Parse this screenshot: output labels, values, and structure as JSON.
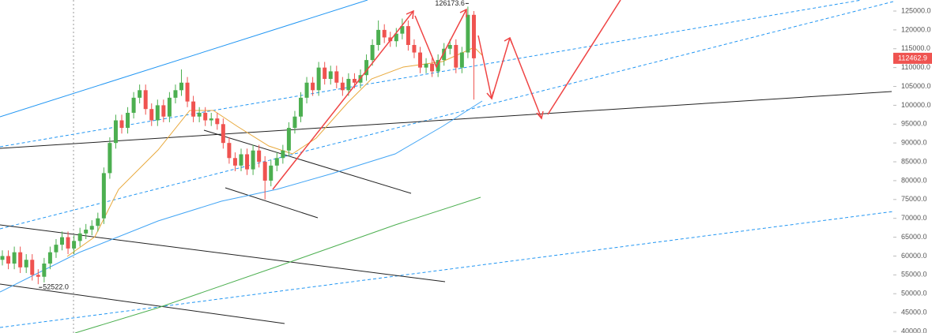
{
  "chart_data": {
    "type": "candlestick",
    "open": [
      59000,
      60000,
      58000,
      61000,
      57000,
      59000,
      55000,
      54500,
      58000,
      61000,
      63000,
      65000,
      62000,
      64000,
      66000,
      67000,
      68000,
      70000,
      82000,
      90000,
      96000,
      94000,
      98000,
      102000,
      104000,
      99000,
      96000,
      100000,
      97000,
      102000,
      104000,
      106000,
      101000,
      97000,
      98000,
      96000,
      96500,
      95000,
      90000,
      86000,
      84000,
      87000,
      83000,
      88000,
      85000,
      80000,
      84000,
      86000,
      88000,
      94000,
      97000,
      102000,
      106000,
      104000,
      110000,
      107000,
      109000,
      106000,
      104000,
      107000,
      106000,
      108000,
      112000,
      116000,
      120000,
      118000,
      117000,
      119000,
      121000,
      116000,
      114000,
      110000,
      111000,
      109000,
      112000,
      115000,
      116000,
      110000,
      114000,
      124000
    ],
    "high": [
      61500,
      61500,
      62500,
      62500,
      60500,
      60500,
      56500,
      59500,
      62500,
      64500,
      66500,
      66500,
      65500,
      67500,
      68500,
      69500,
      71500,
      83500,
      91500,
      97500,
      97500,
      99500,
      103500,
      105500,
      105500,
      100500,
      101500,
      101500,
      103500,
      105500,
      109500,
      107500,
      102500,
      99500,
      99500,
      98000,
      98000,
      96500,
      91500,
      87500,
      88500,
      88500,
      89500,
      89500,
      86500,
      85500,
      87500,
      89500,
      95500,
      98500,
      103500,
      107500,
      107500,
      111500,
      111500,
      110500,
      110500,
      107500,
      108500,
      108500,
      109500,
      113500,
      117500,
      122500,
      121500,
      119500,
      120500,
      123000,
      122500,
      117500,
      115500,
      112500,
      112500,
      113500,
      116500,
      117500,
      117500,
      115500,
      126173.6,
      125000
    ],
    "low": [
      57500,
      56500,
      56500,
      55500,
      55500,
      53500,
      52522,
      53000,
      56500,
      59500,
      61500,
      60500,
      60500,
      62500,
      64500,
      65500,
      66500,
      68500,
      80500,
      88500,
      92500,
      92500,
      96500,
      100500,
      97500,
      94500,
      94500,
      95500,
      95500,
      100500,
      102500,
      99500,
      95500,
      95500,
      94500,
      94500,
      93500,
      88500,
      84500,
      82500,
      82500,
      81500,
      81500,
      83500,
      75000,
      78500,
      82500,
      84500,
      86500,
      92500,
      95500,
      100500,
      102500,
      102500,
      105500,
      105500,
      104500,
      102500,
      102500,
      104500,
      104500,
      106500,
      110500,
      114500,
      116500,
      115500,
      115500,
      117500,
      114500,
      112500,
      108500,
      108500,
      107500,
      107500,
      110500,
      113500,
      108500,
      108500,
      112500,
      101500
    ],
    "close": [
      60000,
      58000,
      61000,
      57000,
      59000,
      55000,
      54500,
      58000,
      61000,
      63000,
      65000,
      62000,
      64000,
      66000,
      67000,
      68000,
      70000,
      82000,
      90000,
      96000,
      94000,
      98000,
      102000,
      104000,
      99000,
      96000,
      100000,
      97000,
      102000,
      104000,
      106000,
      101000,
      97000,
      98000,
      96000,
      96500,
      95000,
      90000,
      86000,
      84000,
      87000,
      83000,
      88000,
      85000,
      80000,
      84000,
      86000,
      88000,
      94000,
      97000,
      102000,
      106000,
      104000,
      110000,
      107000,
      109000,
      106000,
      104000,
      107000,
      106000,
      108000,
      112000,
      116000,
      120000,
      118000,
      117000,
      119000,
      121000,
      116000,
      114000,
      110000,
      111000,
      109000,
      112000,
      115000,
      116000,
      110000,
      114000,
      124000,
      112462.9
    ],
    "up_color": "#4caf50",
    "down_color": "#ef5350",
    "high_label": "126173.6",
    "low_label": "52522.0",
    "last_price_label": "112462.9",
    "ylim": [
      39580,
      127930
    ],
    "yticks": [
      {
        "value": 40000,
        "label": "40000.0"
      },
      {
        "value": 45000,
        "label": "45000.0"
      },
      {
        "value": 50000,
        "label": "50000.0"
      },
      {
        "value": 55000,
        "label": "55000.0"
      },
      {
        "value": 60000,
        "label": "60000.0"
      },
      {
        "value": 65000,
        "label": "65000.0"
      },
      {
        "value": 70000,
        "label": "70000.0"
      },
      {
        "value": 75000,
        "label": "75000.0"
      },
      {
        "value": 80000,
        "label": "80000.0"
      },
      {
        "value": 85000,
        "label": "85000.0"
      },
      {
        "value": 90000,
        "label": "90000.0"
      },
      {
        "value": 95000,
        "label": "95000.0"
      },
      {
        "value": 100000,
        "label": "100000.0"
      },
      {
        "value": 105000,
        "label": "105000.0"
      },
      {
        "value": 110000,
        "label": "110000.0"
      },
      {
        "value": 115000,
        "label": "115000.0"
      },
      {
        "value": 120000,
        "label": "120000.0"
      },
      {
        "value": 125000,
        "label": "125000.0"
      }
    ]
  }
}
